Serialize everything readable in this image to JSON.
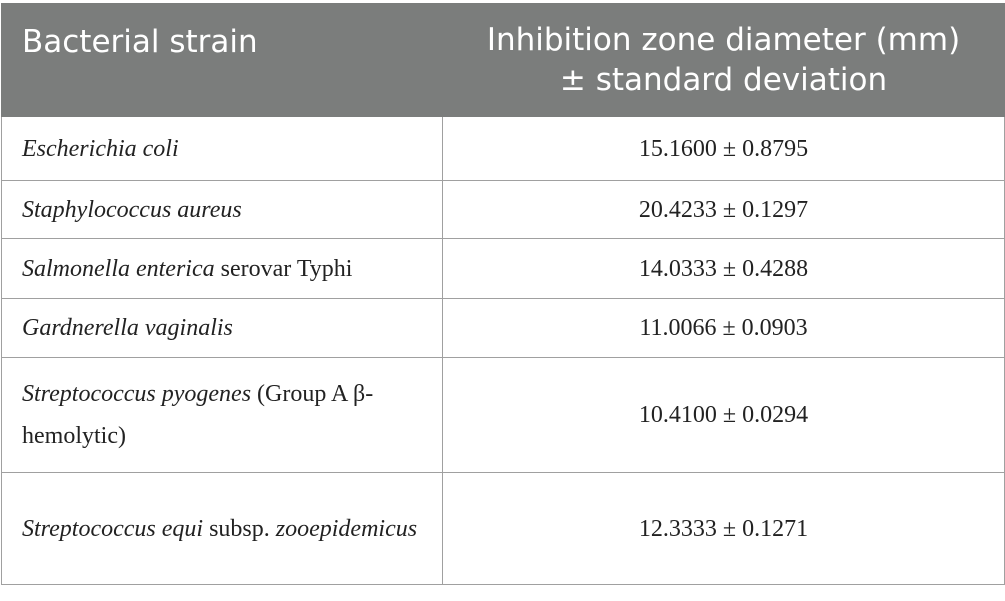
{
  "table": {
    "header": [
      "Bacterial strain",
      "Inhibition zone diameter (mm) ± standard deviation"
    ],
    "rows": [
      [
        [
          {
            "text": "Escherichia coli",
            "italic": true
          }
        ],
        "15.1600 ± 0.8795"
      ],
      [
        [
          {
            "text": "Staphylococcus aureus",
            "italic": true
          }
        ],
        "20.4233 ± 0.1297"
      ],
      [
        [
          {
            "text": "Salmonella enterica",
            "italic": true
          },
          {
            "text": " serovar Typhi",
            "italic": false
          }
        ],
        "14.0333 ± 0.4288"
      ],
      [
        [
          {
            "text": "Gardnerella vaginalis",
            "italic": true
          }
        ],
        "11.0066 ± 0.0903"
      ],
      [
        [
          {
            "text": "Streptococcus pyogenes",
            "italic": true
          },
          {
            "text": " (Group A β-hemolytic)",
            "italic": false
          }
        ],
        "10.4100 ± 0.0294"
      ],
      [
        [
          {
            "text": "Streptococcus equi",
            "italic": true
          },
          {
            "text": " subsp. ",
            "italic": false
          },
          {
            "text": "zooepidemicus",
            "italic": true
          }
        ],
        "12.3333 ± 0.1271"
      ]
    ]
  }
}
